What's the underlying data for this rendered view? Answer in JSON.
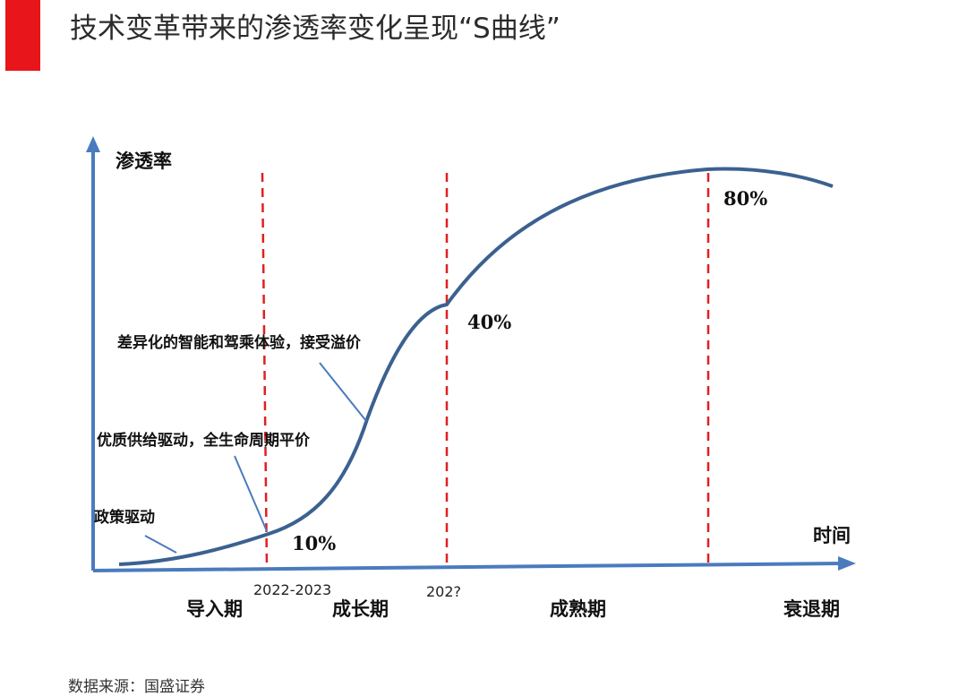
{
  "header": {
    "title": "技术变革带来的渗透率变化呈现“S曲线”",
    "accent_color": "#e8161b"
  },
  "diagram": {
    "y_axis_label": "渗透率",
    "x_axis_label": "时间",
    "axis_color": "#4a7bbd",
    "curve_color": "#3b6190",
    "divider_color": "#e02020",
    "percentages": {
      "p10": "10%",
      "p40": "40%",
      "p80": "80%"
    },
    "years": {
      "y1": "2022-2023",
      "y2": "202?"
    },
    "phases": {
      "intro": "导入期",
      "growth": "成长期",
      "mature": "成熟期",
      "decline": "衰退期"
    },
    "annotations": {
      "policy": "政策驱动",
      "quality": "优质供给驱动，全生命周期平价",
      "premium": "差异化的智能和驾乘体验，接受溢价"
    }
  },
  "footer": {
    "source": "数据来源：国盛证券"
  }
}
